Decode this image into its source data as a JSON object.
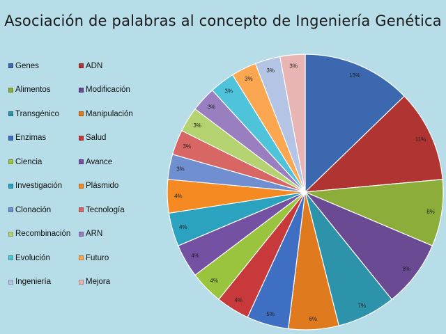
{
  "chart_data": {
    "type": "pie",
    "title": "Asociación de palabras al concepto de Ingeniería Genética",
    "legend_position": "left",
    "slices": [
      {
        "label": "Genes",
        "value": 13,
        "display": "13%",
        "color": "#3c68b0"
      },
      {
        "label": "ADN",
        "value": 11,
        "display": "11%",
        "color": "#b03532"
      },
      {
        "label": "Alimentos",
        "value": 8,
        "display": "8%",
        "color": "#8cad3a"
      },
      {
        "label": "Modificación",
        "value": 8,
        "display": "8%",
        "color": "#6a4a92"
      },
      {
        "label": "Transgénico",
        "value": 7,
        "display": "7%",
        "color": "#2c93ab"
      },
      {
        "label": "Manipulación",
        "value": 6,
        "display": "6%",
        "color": "#df7a1f"
      },
      {
        "label": "Enzimas",
        "value": 5,
        "display": "5%",
        "color": "#3f6fc2"
      },
      {
        "label": "Salud",
        "value": 4,
        "display": "4%",
        "color": "#c7393a"
      },
      {
        "label": "Ciencia",
        "value": 4,
        "display": "4%",
        "color": "#9ac43e"
      },
      {
        "label": "Avance",
        "value": 4,
        "display": "4%",
        "color": "#7451a3"
      },
      {
        "label": "Investigación",
        "value": 4,
        "display": "4%",
        "color": "#2ba2c0"
      },
      {
        "label": "Plásmido",
        "value": 4,
        "display": "4%",
        "color": "#f58a22"
      },
      {
        "label": "Clonación",
        "value": 3,
        "display": "3%",
        "color": "#6f8fd0"
      },
      {
        "label": "Tecnología",
        "value": 3,
        "display": "3%",
        "color": "#d86664"
      },
      {
        "label": "Recombinación",
        "value": 3,
        "display": "3%",
        "color": "#b4d26f"
      },
      {
        "label": "ARN",
        "value": 3,
        "display": "3%",
        "color": "#9a7fc0"
      },
      {
        "label": "Evolución",
        "value": 3,
        "display": "3%",
        "color": "#4fc3d9"
      },
      {
        "label": "Futuro",
        "value": 3,
        "display": "3%",
        "color": "#fba651"
      },
      {
        "label": "Ingeniería",
        "value": 3,
        "display": "3%",
        "color": "#b3c4e4"
      },
      {
        "label": "Mejora",
        "value": 3,
        "display": "3%",
        "color": "#e8b4b4"
      }
    ]
  }
}
